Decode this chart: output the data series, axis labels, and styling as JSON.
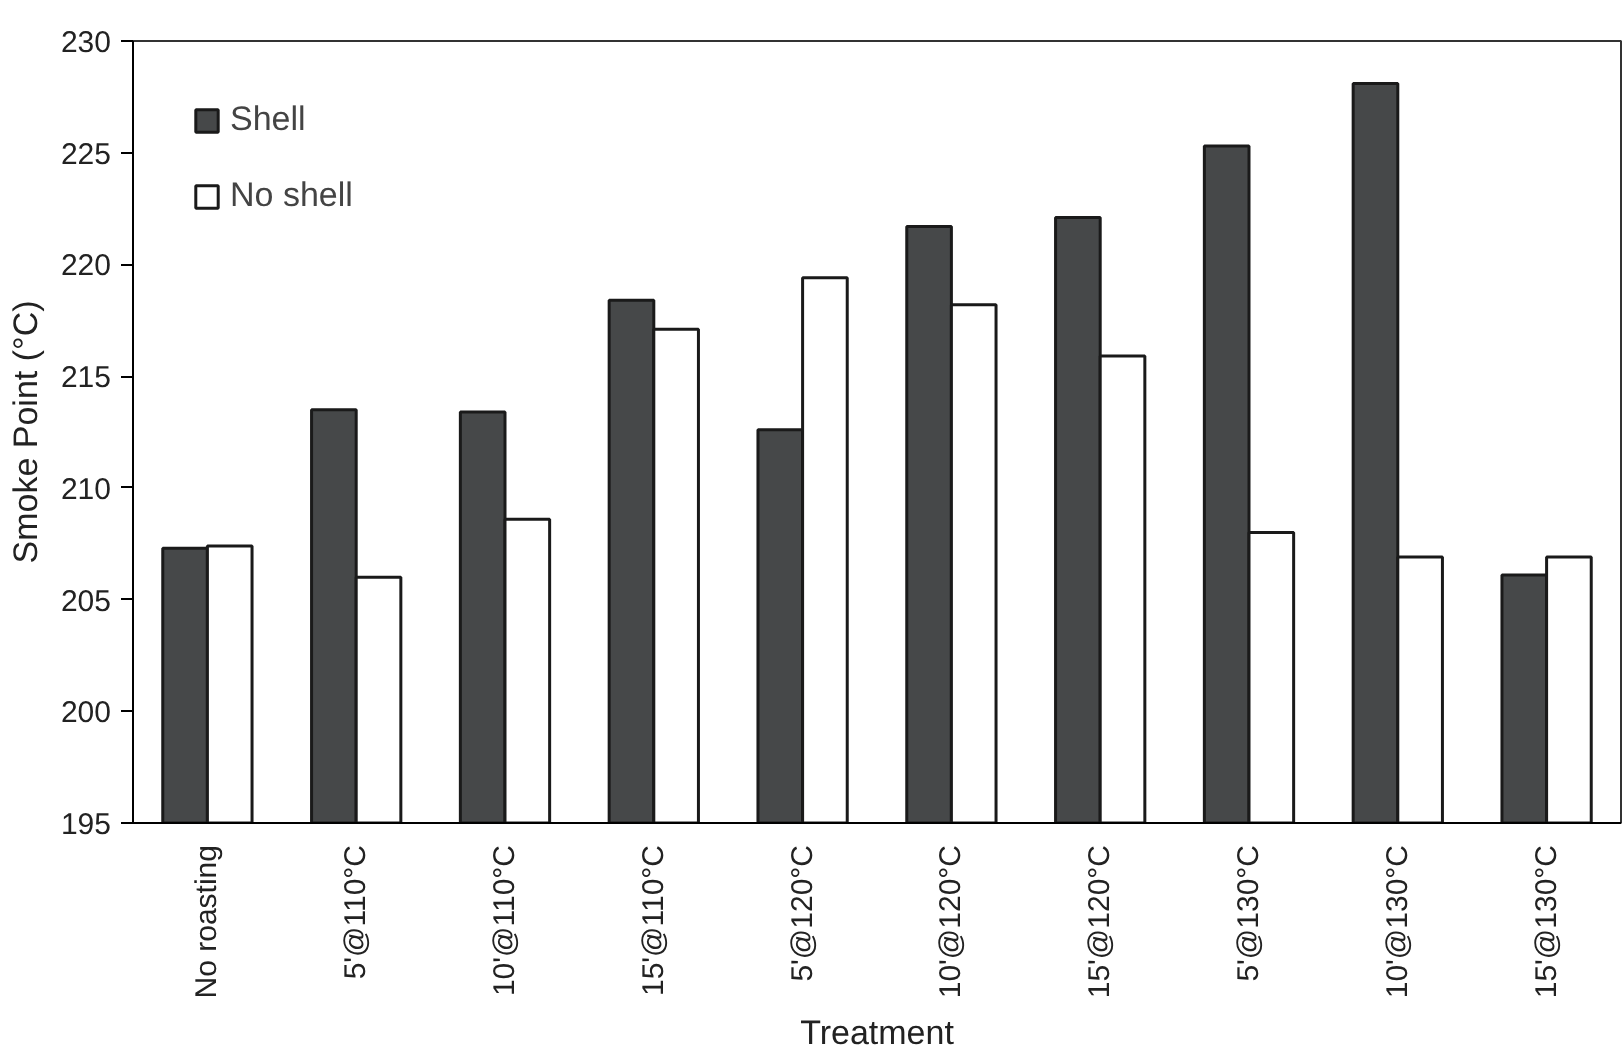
{
  "chart_data": {
    "type": "bar",
    "xlabel": "Treatment",
    "ylabel": "Smoke Point (°C)",
    "categories": [
      "No roasting",
      "5'@110°C",
      "10'@110°C",
      "15'@110°C",
      "5'@120°C",
      "10'@120°C",
      "15'@120°C",
      "5'@130°C",
      "10'@130°C",
      "15'@130°C"
    ],
    "series": [
      {
        "name": "Shell",
        "color": "#464849",
        "values": [
          207.3,
          213.5,
          213.4,
          218.4,
          212.6,
          221.7,
          222.1,
          225.3,
          228.1,
          206.1
        ]
      },
      {
        "name": "No shell",
        "color": "#ffffff",
        "values": [
          207.4,
          206.0,
          208.6,
          217.1,
          219.4,
          218.2,
          215.9,
          208.0,
          206.9,
          206.9
        ]
      }
    ],
    "ylim": [
      195,
      230
    ],
    "yticks": [
      195,
      200,
      205,
      210,
      215,
      220,
      225,
      230
    ],
    "grid": false,
    "legend": "top left"
  }
}
